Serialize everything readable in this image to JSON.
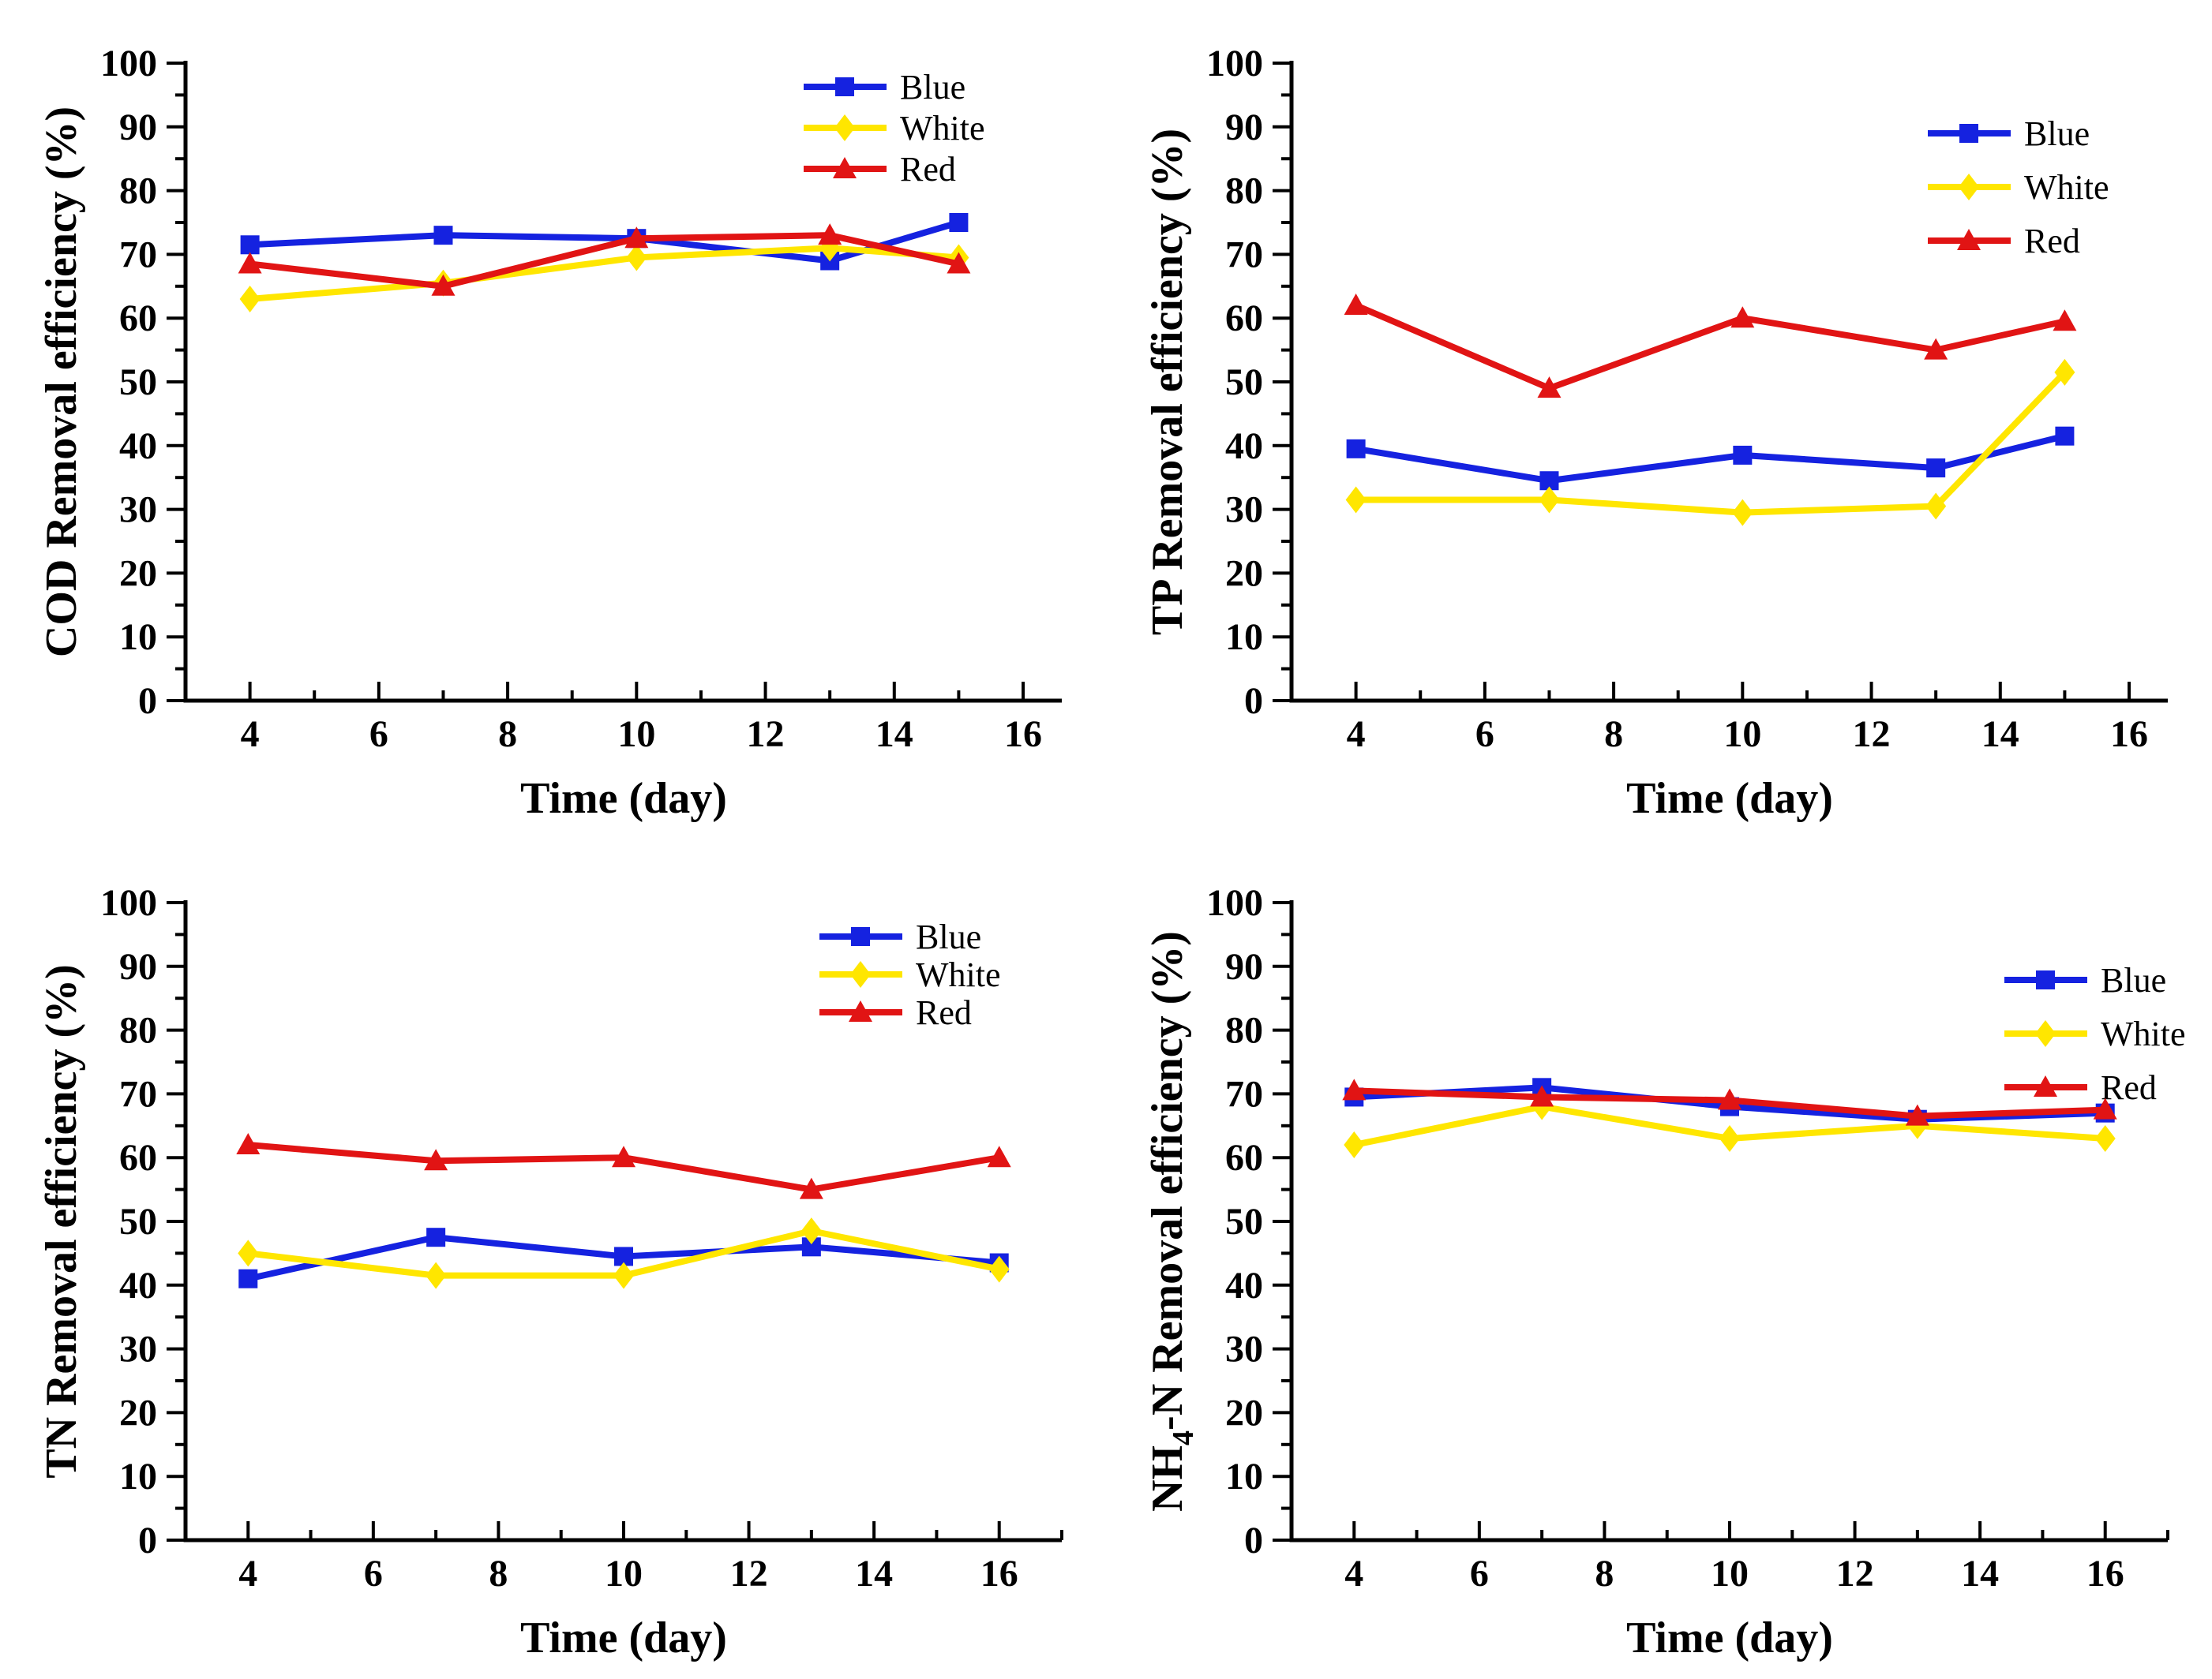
{
  "page": {
    "background": "#ffffff"
  },
  "colors": {
    "blue_series": "#1522E0",
    "white_series_yellow": "#FFE600",
    "red_series": "#E11414",
    "axis": "#000000",
    "text": "#000000"
  },
  "legend_labels": [
    "Blue",
    "White",
    "Red"
  ],
  "chart_data": [
    {
      "id": "cod",
      "type": "line",
      "title": "",
      "xlabel": "Time (day)",
      "ylabel": "COD Removal efficiency (%)",
      "ylabel_parts": [
        {
          "text": "COD Removal efficiency (%)",
          "sub": false
        }
      ],
      "xlim": [
        3,
        16.6
      ],
      "ylim": [
        0,
        100
      ],
      "xticks_major": [
        4,
        6,
        8,
        10,
        12,
        14,
        16
      ],
      "xticks_minor": [
        5,
        7,
        9,
        11,
        13,
        15
      ],
      "yticks_major": [
        0,
        10,
        20,
        30,
        40,
        50,
        60,
        70,
        80,
        90,
        100
      ],
      "yticks_minor": [
        5,
        15,
        25,
        35,
        45,
        55,
        65,
        75,
        85,
        95
      ],
      "grid": false,
      "legend_position": "upper right",
      "x": [
        4,
        7,
        10,
        13,
        15
      ],
      "series": [
        {
          "name": "Blue",
          "marker": "square",
          "color": "#1522E0",
          "values": [
            71.5,
            73,
            72.5,
            69,
            75
          ]
        },
        {
          "name": "White",
          "marker": "diamond",
          "color": "#FFE600",
          "values": [
            63,
            65.5,
            69.5,
            71,
            69.5
          ]
        },
        {
          "name": "Red",
          "marker": "triangle",
          "color": "#E11414",
          "values": [
            68.5,
            65,
            72.5,
            73,
            68.5
          ]
        }
      ],
      "legend_anchor": {
        "x": 1018,
        "y": 110,
        "step": 52
      }
    },
    {
      "id": "tp",
      "type": "line",
      "title": "",
      "xlabel": "Time (day)",
      "ylabel": "TP Removal efficiency (%)",
      "ylabel_parts": [
        {
          "text": "TP Removal efficiency (%)",
          "sub": false
        }
      ],
      "xlim": [
        3,
        16.6
      ],
      "ylim": [
        0,
        100
      ],
      "xticks_major": [
        4,
        6,
        8,
        10,
        12,
        14,
        16
      ],
      "xticks_minor": [
        5,
        7,
        9,
        11,
        13,
        15
      ],
      "yticks_major": [
        0,
        10,
        20,
        30,
        40,
        50,
        60,
        70,
        80,
        90,
        100
      ],
      "yticks_minor": [
        5,
        15,
        25,
        35,
        45,
        55,
        65,
        75,
        85,
        95
      ],
      "grid": false,
      "legend_position": "upper right",
      "x": [
        4,
        7,
        10,
        13,
        15
      ],
      "series": [
        {
          "name": "Blue",
          "marker": "square",
          "color": "#1522E0",
          "values": [
            39.5,
            34.5,
            38.5,
            36.5,
            41.5
          ]
        },
        {
          "name": "White",
          "marker": "diamond",
          "color": "#FFE600",
          "values": [
            31.5,
            31.5,
            29.5,
            30.5,
            51.5
          ]
        },
        {
          "name": "Red",
          "marker": "triangle",
          "color": "#E11414",
          "values": [
            62,
            49,
            60,
            55,
            59.5
          ]
        }
      ],
      "legend_anchor": {
        "x": 1041,
        "y": 169,
        "step": 68
      }
    },
    {
      "id": "tn",
      "type": "line",
      "title": "",
      "xlabel": "Time (day)",
      "ylabel": "TN Removal efficiency (%)",
      "ylabel_parts": [
        {
          "text": "TN Removal efficiency (%)",
          "sub": false
        }
      ],
      "xlim": [
        3,
        17.0
      ],
      "ylim": [
        0,
        100
      ],
      "xticks_major": [
        4,
        6,
        8,
        10,
        12,
        14,
        16
      ],
      "xticks_minor": [
        5,
        7,
        9,
        11,
        13,
        15,
        17
      ],
      "yticks_major": [
        0,
        10,
        20,
        30,
        40,
        50,
        60,
        70,
        80,
        90,
        100
      ],
      "yticks_minor": [
        5,
        15,
        25,
        35,
        45,
        55,
        65,
        75,
        85,
        95
      ],
      "grid": false,
      "legend_position": "upper right",
      "x": [
        4,
        7,
        10,
        13,
        16
      ],
      "series": [
        {
          "name": "Blue",
          "marker": "square",
          "color": "#1522E0",
          "values": [
            41,
            47.5,
            44.5,
            46,
            43.5
          ]
        },
        {
          "name": "White",
          "marker": "diamond",
          "color": "#FFE600",
          "values": [
            45,
            41.5,
            41.5,
            48.5,
            42.5
          ]
        },
        {
          "name": "Red",
          "marker": "triangle",
          "color": "#E11414",
          "values": [
            62,
            59.5,
            60,
            55,
            60
          ]
        }
      ],
      "legend_anchor": {
        "x": 1038,
        "y": 123,
        "step": 48
      }
    },
    {
      "id": "nh4n",
      "type": "line",
      "title": "",
      "xlabel": "Time (day)",
      "ylabel": "NH4-N Removal efficiency (%)",
      "ylabel_parts": [
        {
          "text": "NH",
          "sub": false
        },
        {
          "text": "4",
          "sub": true
        },
        {
          "text": "-N Removal efficiency (%)",
          "sub": false
        }
      ],
      "xlim": [
        3,
        17.0
      ],
      "ylim": [
        0,
        100
      ],
      "xticks_major": [
        4,
        6,
        8,
        10,
        12,
        14,
        16
      ],
      "xticks_minor": [
        5,
        7,
        9,
        11,
        13,
        15,
        17
      ],
      "yticks_major": [
        0,
        10,
        20,
        30,
        40,
        50,
        60,
        70,
        80,
        90,
        100
      ],
      "yticks_minor": [
        5,
        15,
        25,
        35,
        45,
        55,
        65,
        75,
        85,
        95
      ],
      "grid": false,
      "legend_position": "upper right",
      "x": [
        4,
        7,
        10,
        13,
        16
      ],
      "series": [
        {
          "name": "Blue",
          "marker": "square",
          "color": "#1522E0",
          "values": [
            69.5,
            71,
            68,
            66,
            67
          ]
        },
        {
          "name": "White",
          "marker": "diamond",
          "color": "#FFE600",
          "values": [
            62,
            68,
            63,
            65,
            63
          ]
        },
        {
          "name": "Red",
          "marker": "triangle",
          "color": "#E11414",
          "values": [
            70.5,
            69.5,
            69,
            66.5,
            67.5
          ]
        }
      ],
      "legend_anchor": {
        "x": 1138,
        "y": 178,
        "step": 68
      }
    }
  ]
}
